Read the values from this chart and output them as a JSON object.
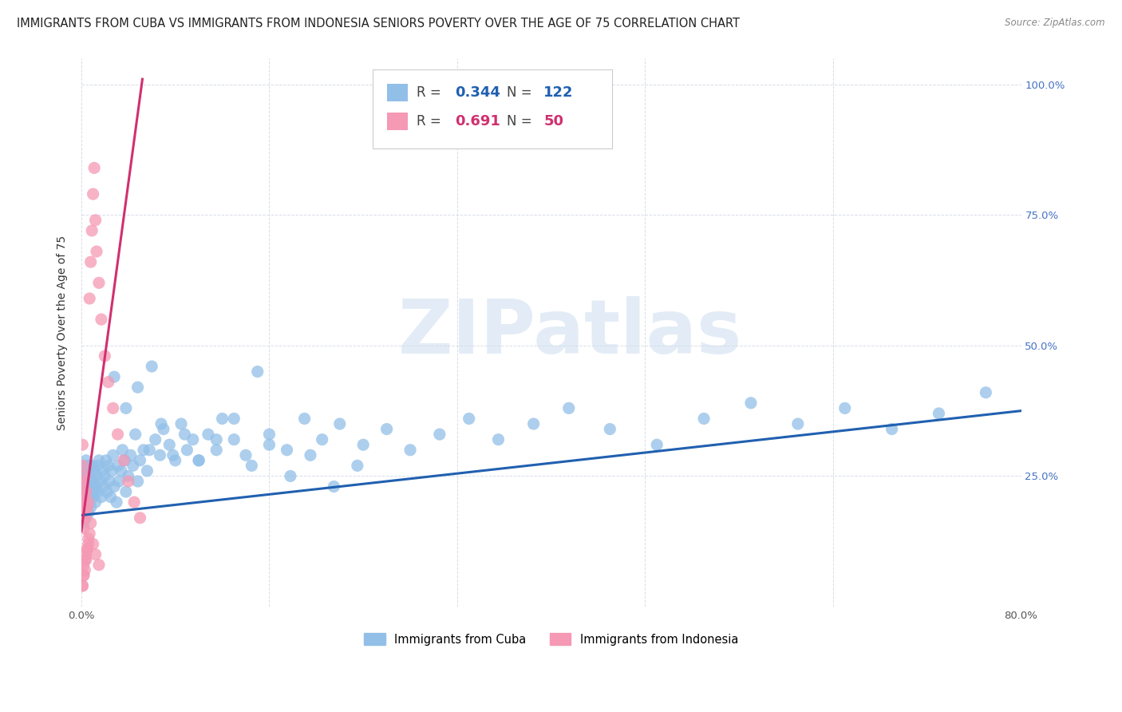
{
  "title": "IMMIGRANTS FROM CUBA VS IMMIGRANTS FROM INDONESIA SENIORS POVERTY OVER THE AGE OF 75 CORRELATION CHART",
  "source": "Source: ZipAtlas.com",
  "ylabel": "Seniors Poverty Over the Age of 75",
  "ytick_values": [
    0.0,
    0.25,
    0.5,
    0.75,
    1.0
  ],
  "ytick_labels": [
    "",
    "25.0%",
    "50.0%",
    "75.0%",
    "100.0%"
  ],
  "xlim": [
    0.0,
    0.8
  ],
  "ylim": [
    0.0,
    1.05
  ],
  "watermark_text": "ZIPatlas",
  "legend_blue_r": "0.344",
  "legend_blue_n": "122",
  "legend_pink_r": "0.691",
  "legend_pink_n": "50",
  "legend_label_blue": "Immigrants from Cuba",
  "legend_label_pink": "Immigrants from Indonesia",
  "blue_color": "#92bfe8",
  "pink_color": "#f599b4",
  "line_blue_color": "#2060b0",
  "line_pink_color": "#d03070",
  "blue_line_x": [
    0.0,
    0.8
  ],
  "blue_line_y": [
    0.175,
    0.375
  ],
  "pink_line_x": [
    0.0,
    0.052
  ],
  "pink_line_y": [
    0.145,
    1.01
  ],
  "grid_color": "#d8dde8",
  "bg_color": "#ffffff",
  "title_fontsize": 10.5,
  "source_fontsize": 8.5,
  "axis_label_fontsize": 10,
  "tick_fontsize": 9.5,
  "ytick_color": "#4472c4",
  "xtick_color": "#555555",
  "blue_dots_x": [
    0.001,
    0.001,
    0.001,
    0.002,
    0.002,
    0.002,
    0.002,
    0.003,
    0.003,
    0.003,
    0.003,
    0.004,
    0.004,
    0.004,
    0.004,
    0.005,
    0.005,
    0.005,
    0.005,
    0.006,
    0.006,
    0.006,
    0.007,
    0.007,
    0.007,
    0.008,
    0.008,
    0.008,
    0.009,
    0.009,
    0.01,
    0.01,
    0.011,
    0.011,
    0.012,
    0.012,
    0.013,
    0.014,
    0.014,
    0.015,
    0.016,
    0.017,
    0.018,
    0.019,
    0.02,
    0.021,
    0.022,
    0.023,
    0.024,
    0.025,
    0.026,
    0.027,
    0.028,
    0.03,
    0.031,
    0.032,
    0.034,
    0.035,
    0.037,
    0.038,
    0.04,
    0.042,
    0.044,
    0.046,
    0.048,
    0.05,
    0.053,
    0.056,
    0.06,
    0.063,
    0.067,
    0.07,
    0.075,
    0.08,
    0.085,
    0.09,
    0.095,
    0.1,
    0.108,
    0.115,
    0.12,
    0.13,
    0.14,
    0.15,
    0.16,
    0.175,
    0.19,
    0.205,
    0.22,
    0.24,
    0.26,
    0.28,
    0.305,
    0.33,
    0.355,
    0.385,
    0.415,
    0.45,
    0.49,
    0.53,
    0.57,
    0.61,
    0.65,
    0.69,
    0.73,
    0.77,
    0.028,
    0.038,
    0.048,
    0.058,
    0.068,
    0.078,
    0.088,
    0.1,
    0.115,
    0.13,
    0.145,
    0.16,
    0.178,
    0.195,
    0.215,
    0.235
  ],
  "blue_dots_y": [
    0.17,
    0.21,
    0.25,
    0.16,
    0.2,
    0.23,
    0.27,
    0.18,
    0.22,
    0.25,
    0.19,
    0.17,
    0.21,
    0.24,
    0.28,
    0.19,
    0.22,
    0.26,
    0.2,
    0.18,
    0.23,
    0.27,
    0.2,
    0.24,
    0.21,
    0.22,
    0.25,
    0.19,
    0.23,
    0.27,
    0.21,
    0.24,
    0.22,
    0.26,
    0.23,
    0.2,
    0.25,
    0.27,
    0.22,
    0.28,
    0.24,
    0.21,
    0.26,
    0.23,
    0.25,
    0.28,
    0.22,
    0.27,
    0.24,
    0.21,
    0.26,
    0.29,
    0.23,
    0.2,
    0.27,
    0.24,
    0.26,
    0.3,
    0.28,
    0.22,
    0.25,
    0.29,
    0.27,
    0.33,
    0.24,
    0.28,
    0.3,
    0.26,
    0.46,
    0.32,
    0.29,
    0.34,
    0.31,
    0.28,
    0.35,
    0.3,
    0.32,
    0.28,
    0.33,
    0.3,
    0.36,
    0.32,
    0.29,
    0.45,
    0.33,
    0.3,
    0.36,
    0.32,
    0.35,
    0.31,
    0.34,
    0.3,
    0.33,
    0.36,
    0.32,
    0.35,
    0.38,
    0.34,
    0.31,
    0.36,
    0.39,
    0.35,
    0.38,
    0.34,
    0.37,
    0.41,
    0.44,
    0.38,
    0.42,
    0.3,
    0.35,
    0.29,
    0.33,
    0.28,
    0.32,
    0.36,
    0.27,
    0.31,
    0.25,
    0.29,
    0.23,
    0.27
  ],
  "pink_dots_x": [
    0.001,
    0.001,
    0.001,
    0.001,
    0.001,
    0.001,
    0.002,
    0.002,
    0.002,
    0.002,
    0.002,
    0.003,
    0.003,
    0.003,
    0.003,
    0.004,
    0.004,
    0.004,
    0.005,
    0.005,
    0.006,
    0.006,
    0.007,
    0.008,
    0.009,
    0.01,
    0.011,
    0.012,
    0.013,
    0.015,
    0.017,
    0.02,
    0.023,
    0.027,
    0.031,
    0.036,
    0.04,
    0.045,
    0.05,
    0.001,
    0.002,
    0.003,
    0.004,
    0.005,
    0.006,
    0.007,
    0.008,
    0.01,
    0.012,
    0.015
  ],
  "pink_dots_y": [
    0.17,
    0.2,
    0.24,
    0.27,
    0.31,
    0.04,
    0.15,
    0.19,
    0.23,
    0.06,
    0.08,
    0.17,
    0.21,
    0.25,
    0.09,
    0.18,
    0.22,
    0.1,
    0.19,
    0.11,
    0.2,
    0.13,
    0.59,
    0.66,
    0.72,
    0.79,
    0.84,
    0.74,
    0.68,
    0.62,
    0.55,
    0.48,
    0.43,
    0.38,
    0.33,
    0.28,
    0.24,
    0.2,
    0.17,
    0.04,
    0.06,
    0.07,
    0.09,
    0.11,
    0.12,
    0.14,
    0.16,
    0.12,
    0.1,
    0.08
  ]
}
